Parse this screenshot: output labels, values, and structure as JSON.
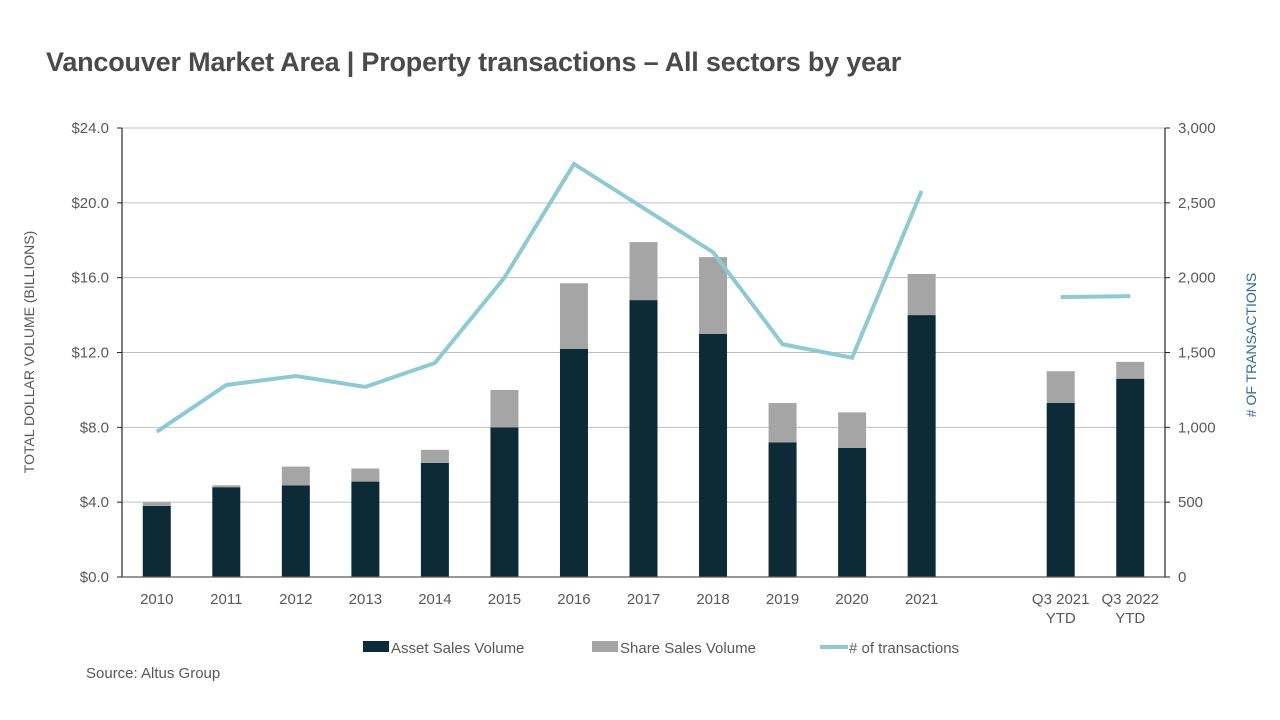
{
  "chart_data": {
    "type": "bar",
    "title": "Vancouver Market Area | Property transactions – All sectors by year",
    "categories": [
      "2010",
      "2011",
      "2012",
      "2013",
      "2014",
      "2015",
      "2016",
      "2017",
      "2018",
      "2019",
      "2020",
      "2021",
      "",
      "Q3 2021\nYTD",
      "Q3 2022\nYTD"
    ],
    "series": [
      {
        "name": "Asset Sales Volume",
        "type": "bar",
        "stacked": true,
        "axis": "left",
        "color": "#0d2b36",
        "values": [
          3.8,
          4.8,
          4.9,
          5.1,
          6.1,
          8.0,
          12.2,
          14.8,
          13.0,
          7.2,
          6.9,
          14.0,
          null,
          9.3,
          10.6
        ]
      },
      {
        "name": "Share Sales Volume",
        "type": "bar",
        "stacked": true,
        "axis": "left",
        "color": "#a5a5a5",
        "values": [
          0.2,
          0.1,
          1.0,
          0.7,
          0.7,
          2.0,
          3.5,
          3.1,
          4.1,
          2.1,
          1.9,
          2.2,
          null,
          1.7,
          0.9
        ]
      },
      {
        "name": "# of transactions",
        "type": "line",
        "axis": "right",
        "color": "#8ecad1",
        "values": [
          970,
          1283,
          1343,
          1270,
          1430,
          2000,
          2760,
          2465,
          2170,
          1555,
          1465,
          2580,
          null,
          1870,
          1877
        ]
      }
    ],
    "ylabel": "TOTAL DOLLAR VOLUME (BILLIONS)",
    "y2label": "# OF TRANSACTIONS",
    "xlabel": "",
    "ylim": [
      0,
      24
    ],
    "y2lim": [
      0,
      3000
    ],
    "yticks": [
      "$0.0",
      "$4.0",
      "$8.0",
      "$12.0",
      "$16.0",
      "$20.0",
      "$24.0"
    ],
    "y2ticks": [
      "0",
      "500",
      "1,000",
      "1,500",
      "2,000",
      "2,500",
      "3,000"
    ],
    "grid": true,
    "legend_position": "bottom"
  },
  "source": "Source:  Altus Group"
}
